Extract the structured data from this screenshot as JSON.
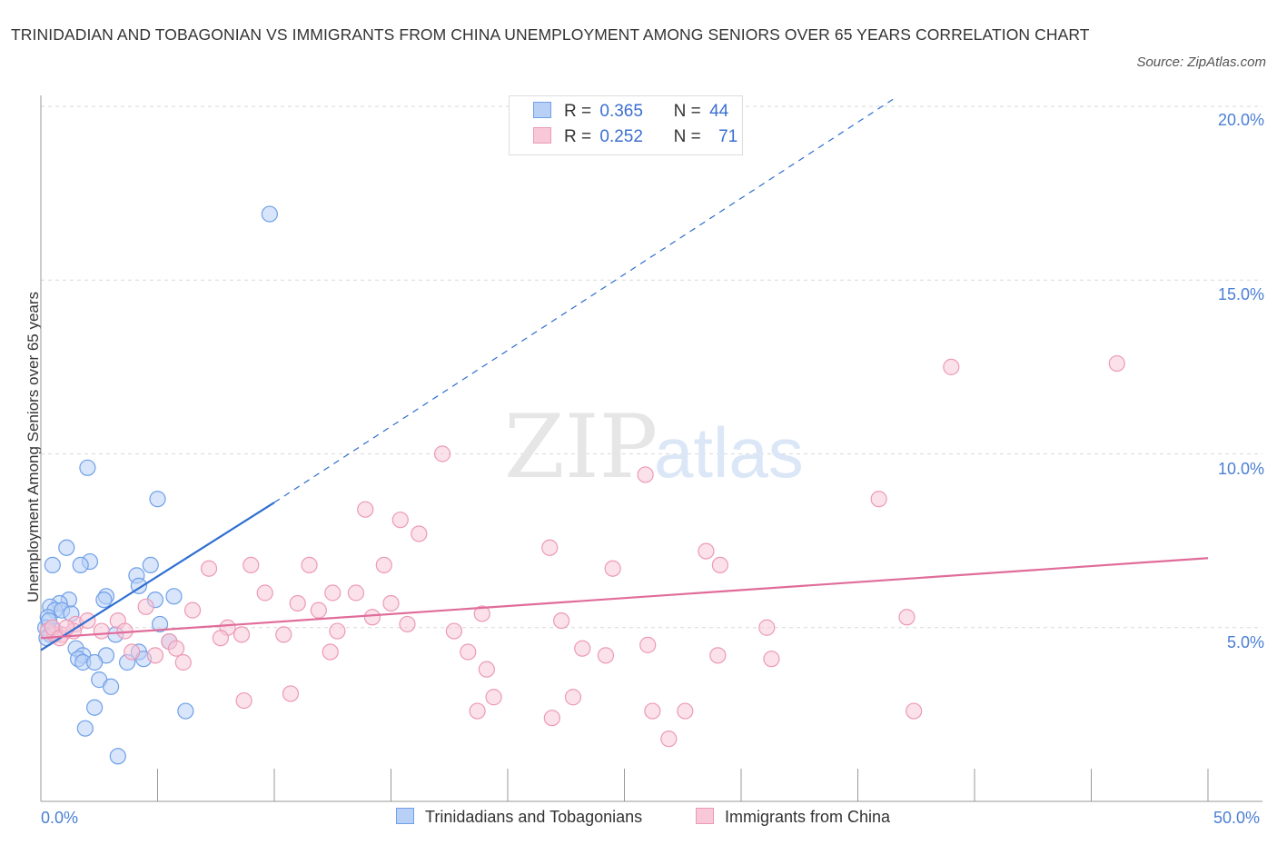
{
  "chart_data": {
    "type": "scatter",
    "title": "TRINIDADIAN AND TOBAGONIAN VS IMMIGRANTS FROM CHINA UNEMPLOYMENT AMONG SENIORS OVER 65 YEARS CORRELATION CHART",
    "source": "Source: ZipAtlas.com",
    "ylabel": "Unemployment Among Seniors over 65 years",
    "xlabel": "",
    "xlim": [
      0,
      50
    ],
    "ylim": [
      0,
      20.5
    ],
    "x_tick_labels": [
      "0.0%",
      "50.0%"
    ],
    "y_ticks": [
      5,
      10,
      15,
      20
    ],
    "y_tick_labels": [
      "5.0%",
      "10.0%",
      "15.0%",
      "20.0%"
    ],
    "grid": true,
    "watermark": "ZIPatlas",
    "series": [
      {
        "name": "Trinidadians and Tobagonians",
        "color": "#6fa0e8",
        "fill": "#b8d0f5",
        "line_color": "#2f6fd0",
        "R": "0.365",
        "N": "44",
        "trend": {
          "solid": [
            [
              0,
              4.35
            ],
            [
              10,
              8.6
            ]
          ],
          "dashed_to": [
            36.5,
            20.2
          ]
        },
        "points": [
          [
            9.8,
            16.9
          ],
          [
            2.0,
            9.6
          ],
          [
            5.0,
            8.7
          ],
          [
            1.1,
            7.3
          ],
          [
            2.1,
            6.9
          ],
          [
            0.5,
            6.8
          ],
          [
            1.7,
            6.8
          ],
          [
            4.7,
            6.8
          ],
          [
            4.1,
            6.5
          ],
          [
            4.2,
            6.2
          ],
          [
            2.8,
            5.9
          ],
          [
            5.7,
            5.9
          ],
          [
            4.9,
            5.8
          ],
          [
            2.7,
            5.8
          ],
          [
            1.2,
            5.8
          ],
          [
            0.8,
            5.7
          ],
          [
            0.4,
            5.6
          ],
          [
            0.6,
            5.5
          ],
          [
            0.9,
            5.5
          ],
          [
            1.3,
            5.4
          ],
          [
            0.3,
            5.3
          ],
          [
            0.2,
            5.0
          ],
          [
            5.1,
            5.1
          ],
          [
            3.2,
            4.8
          ],
          [
            0.6,
            4.9
          ],
          [
            0.4,
            4.8
          ],
          [
            0.25,
            4.7
          ],
          [
            5.5,
            4.6
          ],
          [
            1.5,
            4.4
          ],
          [
            4.2,
            4.3
          ],
          [
            2.8,
            4.2
          ],
          [
            1.8,
            4.2
          ],
          [
            1.6,
            4.1
          ],
          [
            1.8,
            4.0
          ],
          [
            4.4,
            4.1
          ],
          [
            2.3,
            4.0
          ],
          [
            3.7,
            4.0
          ],
          [
            2.5,
            3.5
          ],
          [
            3.0,
            3.3
          ],
          [
            2.3,
            2.7
          ],
          [
            6.2,
            2.6
          ],
          [
            1.9,
            2.1
          ],
          [
            3.3,
            1.3
          ],
          [
            0.35,
            5.2
          ]
        ]
      },
      {
        "name": "Immigrants from China",
        "color": "#ec9ab6",
        "fill": "#f8c8d8",
        "line_color": "#e06c9a",
        "R": "0.252",
        "N": "71",
        "trend": {
          "solid": [
            [
              0,
              4.7
            ],
            [
              50,
              7.0
            ]
          ]
        },
        "points": [
          [
            39.0,
            12.5
          ],
          [
            46.1,
            12.6
          ],
          [
            17.2,
            10.0
          ],
          [
            25.9,
            9.4
          ],
          [
            35.9,
            8.7
          ],
          [
            13.9,
            8.4
          ],
          [
            15.4,
            8.1
          ],
          [
            16.2,
            7.7
          ],
          [
            21.8,
            7.3
          ],
          [
            28.5,
            7.2
          ],
          [
            9.0,
            6.8
          ],
          [
            11.5,
            6.8
          ],
          [
            14.7,
            6.8
          ],
          [
            7.2,
            6.7
          ],
          [
            24.5,
            6.7
          ],
          [
            29.1,
            6.8
          ],
          [
            9.6,
            6.0
          ],
          [
            12.5,
            6.0
          ],
          [
            13.5,
            6.0
          ],
          [
            11.0,
            5.7
          ],
          [
            15.0,
            5.7
          ],
          [
            6.5,
            5.5
          ],
          [
            11.9,
            5.5
          ],
          [
            18.9,
            5.4
          ],
          [
            4.5,
            5.6
          ],
          [
            14.2,
            5.3
          ],
          [
            37.1,
            5.3
          ],
          [
            3.3,
            5.2
          ],
          [
            15.7,
            5.1
          ],
          [
            22.3,
            5.2
          ],
          [
            8.0,
            5.0
          ],
          [
            31.1,
            5.0
          ],
          [
            1.5,
            5.1
          ],
          [
            2.6,
            4.9
          ],
          [
            3.6,
            4.9
          ],
          [
            12.7,
            4.9
          ],
          [
            17.7,
            4.9
          ],
          [
            8.6,
            4.8
          ],
          [
            10.4,
            4.8
          ],
          [
            7.7,
            4.7
          ],
          [
            0.9,
            4.8
          ],
          [
            1.4,
            4.9
          ],
          [
            0.6,
            4.8
          ],
          [
            5.5,
            4.6
          ],
          [
            5.8,
            4.4
          ],
          [
            26.0,
            4.5
          ],
          [
            23.2,
            4.4
          ],
          [
            4.9,
            4.2
          ],
          [
            12.4,
            4.3
          ],
          [
            18.3,
            4.3
          ],
          [
            24.2,
            4.2
          ],
          [
            29.0,
            4.2
          ],
          [
            6.1,
            4.0
          ],
          [
            31.3,
            4.1
          ],
          [
            19.1,
            3.8
          ],
          [
            3.9,
            4.3
          ],
          [
            8.7,
            2.9
          ],
          [
            10.7,
            3.1
          ],
          [
            19.4,
            3.0
          ],
          [
            22.8,
            3.0
          ],
          [
            18.7,
            2.6
          ],
          [
            26.2,
            2.6
          ],
          [
            27.6,
            2.6
          ],
          [
            37.4,
            2.6
          ],
          [
            21.9,
            2.4
          ],
          [
            26.9,
            1.8
          ],
          [
            0.3,
            4.9
          ],
          [
            0.5,
            5.0
          ],
          [
            0.8,
            4.7
          ],
          [
            2.0,
            5.2
          ],
          [
            1.1,
            5.0
          ]
        ]
      }
    ]
  },
  "legend": {
    "r_label": "R =",
    "n_label": "N =",
    "series1_r": "0.365",
    "series1_n": "44",
    "series2_r": "0.252",
    "series2_n": "71",
    "series1_name": "Trinidadians and Tobagonians",
    "series2_name": "Immigrants from China"
  }
}
